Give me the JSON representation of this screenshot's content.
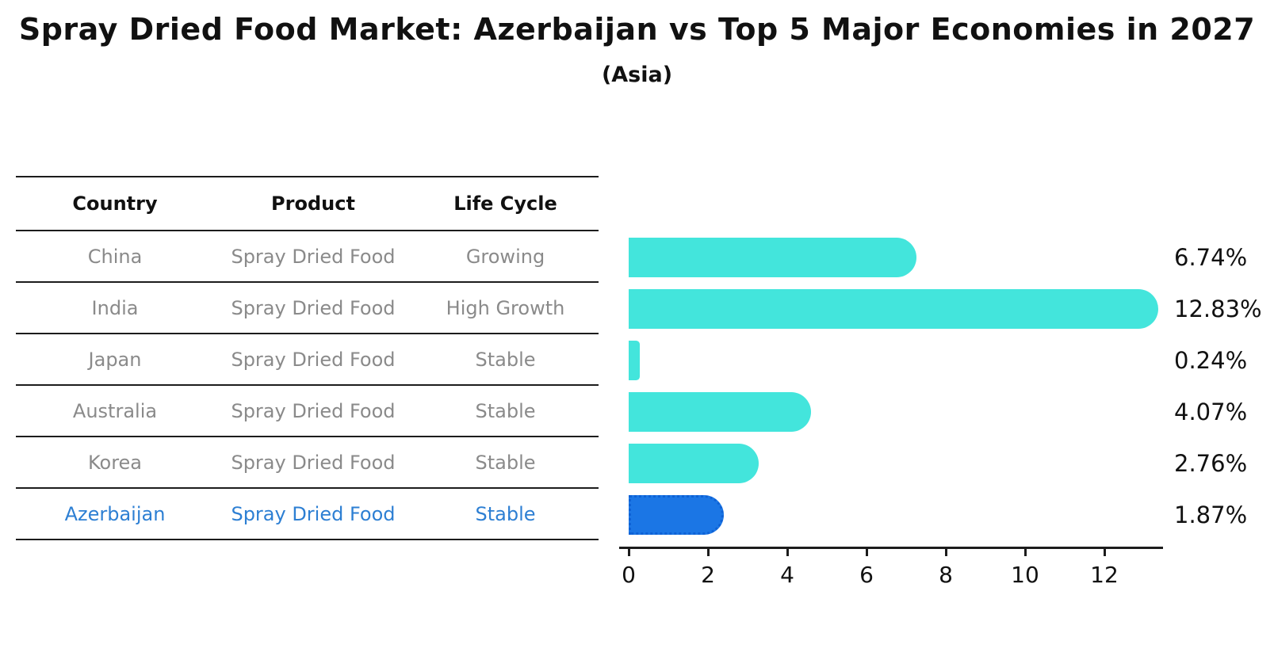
{
  "title": "Spray Dried Food Market: Azerbaijan vs Top 5 Major Economies in 2027",
  "subtitle": "(Asia)",
  "table": {
    "headers": [
      "Country",
      "Product",
      "Life Cycle"
    ],
    "rows": [
      {
        "country": "China",
        "product": "Spray Dried Food",
        "life_cycle": "Growing",
        "highlight": false
      },
      {
        "country": "India",
        "product": "Spray Dried Food",
        "life_cycle": "High Growth",
        "highlight": false
      },
      {
        "country": "Japan",
        "product": "Spray Dried Food",
        "life_cycle": "Stable",
        "highlight": false
      },
      {
        "country": "Australia",
        "product": "Spray Dried Food",
        "life_cycle": "Stable",
        "highlight": false
      },
      {
        "country": "Korea",
        "product": "Spray Dried Food",
        "life_cycle": "Stable",
        "highlight": false
      },
      {
        "country": "Azerbaijan",
        "product": "Spray Dried Food",
        "life_cycle": "Stable",
        "highlight": true
      }
    ]
  },
  "chart_data": {
    "type": "bar",
    "orientation": "horizontal",
    "title": "Spray Dried Food Market: Azerbaijan vs Top 5 Major Economies in 2027 (Asia)",
    "categories": [
      "China",
      "India",
      "Japan",
      "Australia",
      "Korea",
      "Azerbaijan"
    ],
    "values": [
      6.74,
      12.83,
      0.24,
      4.07,
      2.76,
      1.87
    ],
    "value_labels": [
      "6.74%",
      "12.83%",
      "0.24%",
      "4.07%",
      "2.76%",
      "1.87%"
    ],
    "xlabel": "",
    "ylabel": "",
    "xticks": [
      0,
      2,
      4,
      6,
      8,
      10,
      12
    ],
    "xlim": [
      0,
      13.5
    ],
    "grid": false,
    "legend": false,
    "bar_color": "#43E5DC",
    "highlight_index": 5,
    "highlight_color": "#1B76E5",
    "highlight_border_color": "#0E62D6"
  },
  "colors": {
    "background": "#FFFFFF",
    "table_line": "#1C1C1C",
    "row_text": "#8A8A8A",
    "highlight_row_text": "#2D7FD3",
    "label_text": "#111111"
  }
}
